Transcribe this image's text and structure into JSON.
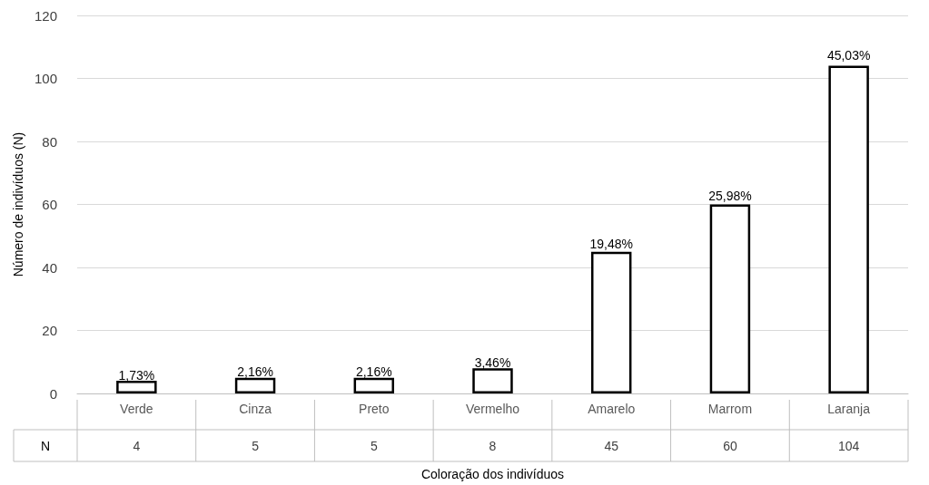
{
  "chart_data": {
    "type": "bar",
    "xlabel": "Coloração dos indivíduos",
    "ylabel": "Número de indivíduos (N)",
    "categories": [
      "Verde",
      "Cinza",
      "Preto",
      "Vermelho",
      "Amarelo",
      "Marrom",
      "Laranja"
    ],
    "series": [
      {
        "name": "N",
        "color": "#ffffff",
        "values": [
          4,
          5,
          5,
          8,
          45,
          60,
          104
        ],
        "value_labels": [
          "4",
          "5",
          "5",
          "8",
          "45",
          "60",
          "104"
        ]
      }
    ],
    "annotations": [
      {
        "text": "1,73%",
        "x": "Verde",
        "y": 4
      },
      {
        "text": "2,16%",
        "x": "Cinza",
        "y": 5
      },
      {
        "text": "2,16%",
        "x": "Preto",
        "y": 5
      },
      {
        "text": "3,46%",
        "x": "Vermelho",
        "y": 8
      },
      {
        "text": "19,48%",
        "x": "Amarelo",
        "y": 45
      },
      {
        "text": "25,98%",
        "x": "Marrom",
        "y": 60
      },
      {
        "text": "45,03%",
        "x": "Laranja",
        "y": 104
      }
    ],
    "ylim": [
      0,
      120
    ],
    "yticks": [
      0,
      20,
      40,
      60,
      80,
      100,
      120
    ],
    "grid": "y",
    "legend": false
  }
}
